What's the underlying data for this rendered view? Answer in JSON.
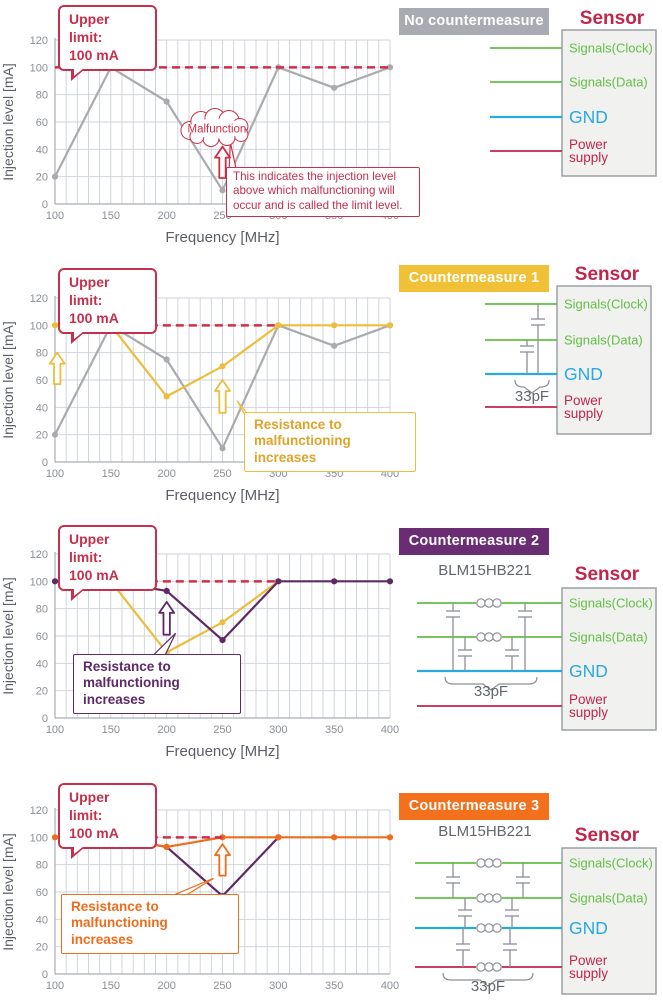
{
  "colors": {
    "red": "#cf2e46",
    "crimson": "#c2254a",
    "gray_line": "#a9abad",
    "yellow": "#ecbe3c",
    "purple": "#5d2a66",
    "orange": "#ee6d1d",
    "green": "#62c046",
    "blue": "#29a9e0",
    "badge_gray": "#a8acb2",
    "badge_yellow": "#f0c137",
    "badge_purple": "#6a2d74",
    "badge_orange": "#f3701d",
    "grid": "#ccd1da",
    "axis_line": "#a9aeb5",
    "axis_text": "#8a8f96",
    "axis_title": "#5a5f66",
    "component": "#8a9096",
    "label_gray": "#60666c",
    "sensor_box_fill": "#f1f1ef",
    "sensor_box_border": "#9aa0a5"
  },
  "upper_limit": [
    "Upper limit:",
    "100 mA"
  ],
  "axes": {
    "x_label": "Frequency  [MHz]",
    "y_label": "Injection level [mA]",
    "x_ticks": [
      100,
      150,
      200,
      250,
      300,
      350,
      400
    ],
    "y_ticks": [
      0,
      20,
      40,
      60,
      80,
      100,
      120
    ],
    "x_minor_step": 10,
    "xlim": [
      100,
      400
    ],
    "ylim": [
      0,
      130
    ]
  },
  "panels": [
    {
      "badge": {
        "label": "No countermeasure",
        "color_key": "badge_gray"
      },
      "note": "This indicates the injection level above which malfunctioning will occur and is called the limit level.",
      "sensor": {
        "title": "Sensor",
        "part_label": null,
        "cap_value": null,
        "beads": [],
        "pins": [
          {
            "label": "Signals(Clock)",
            "color_key": "green"
          },
          {
            "label": "Signals(Data)",
            "color_key": "green"
          },
          {
            "label": "GND",
            "color_key": "blue"
          },
          {
            "label": "Power supply",
            "color_key": "crimson"
          }
        ]
      }
    },
    {
      "badge": {
        "label": "Countermeasure 1",
        "color_key": "badge_yellow"
      },
      "resist_note": "Resistance to malfunctioning increases",
      "sensor": {
        "title": "Sensor",
        "part_label": null,
        "cap_value": "33pF",
        "beads": [],
        "pins": [
          {
            "label": "Signals(Clock)",
            "color_key": "green"
          },
          {
            "label": "Signals(Data)",
            "color_key": "green"
          },
          {
            "label": "GND",
            "color_key": "blue"
          },
          {
            "label": "Power supply",
            "color_key": "crimson"
          }
        ]
      }
    },
    {
      "badge": {
        "label": "Countermeasure 2",
        "color_key": "badge_purple"
      },
      "resist_note": "Resistance to malfunctioning increases",
      "sensor": {
        "title": "Sensor",
        "part_label": "BLM15HB221",
        "cap_value": "33pF",
        "beads": [
          0,
          1
        ],
        "pins": [
          {
            "label": "Signals(Clock)",
            "color_key": "green"
          },
          {
            "label": "Signals(Data)",
            "color_key": "green"
          },
          {
            "label": "GND",
            "color_key": "blue"
          },
          {
            "label": "Power supply",
            "color_key": "crimson"
          }
        ]
      }
    },
    {
      "badge": {
        "label": "Countermeasure 3",
        "color_key": "badge_orange"
      },
      "resist_note": "Resistance to malfunctioning increases",
      "sensor": {
        "title": "Sensor",
        "part_label": "BLM15HB221",
        "cap_value": "33pF",
        "beads": [
          0,
          1,
          2,
          3
        ],
        "pins": [
          {
            "label": "Signals(Clock)",
            "color_key": "green"
          },
          {
            "label": "Signals(Data)",
            "color_key": "green"
          },
          {
            "label": "GND",
            "color_key": "blue"
          },
          {
            "label": "Power supply",
            "color_key": "crimson"
          }
        ]
      }
    }
  ],
  "chart_data": [
    {
      "type": "line",
      "title": "No countermeasure",
      "xlabel": "Frequency  [MHz]",
      "ylabel": "Injection level [mA]",
      "xlim": [
        100,
        400
      ],
      "ylim": [
        0,
        130
      ],
      "grid": true,
      "x_ticks": [
        100,
        150,
        200,
        250,
        300,
        350,
        400
      ],
      "y_ticks": [
        0,
        20,
        40,
        60,
        80,
        100,
        120
      ],
      "series": [
        {
          "name": "No countermeasure",
          "color_key": "gray_line",
          "dots": true,
          "points": [
            [
              100,
              20
            ],
            [
              150,
              100
            ],
            [
              200,
              75
            ],
            [
              250,
              10
            ],
            [
              300,
              100
            ],
            [
              350,
              85
            ],
            [
              400,
              100
            ]
          ]
        }
      ],
      "limit_line": {
        "y": 100,
        "x0": 100,
        "x1": 400,
        "label": "Upper limit: 100 mA",
        "color_key": "red"
      },
      "annotations": {
        "cloud": {
          "label": "Malfunction",
          "x": 245,
          "y": 56
        },
        "arrows": [
          {
            "x": 250,
            "y_from": 19,
            "y_to": 42,
            "color_key": "red"
          }
        ],
        "pointers": [
          {
            "tip": [
              257,
              45
            ],
            "base": [
              [
                256,
                26
              ],
              [
                263,
                23
              ]
            ],
            "color_key": "red"
          }
        ]
      }
    },
    {
      "type": "line",
      "title": "Countermeasure 1",
      "xlabel": "Frequency  [MHz]",
      "ylabel": "Injection level [mA]",
      "xlim": [
        100,
        400
      ],
      "ylim": [
        0,
        130
      ],
      "grid": true,
      "x_ticks": [
        100,
        150,
        200,
        250,
        300,
        350,
        400
      ],
      "y_ticks": [
        0,
        20,
        40,
        60,
        80,
        100,
        120
      ],
      "series": [
        {
          "name": "No countermeasure",
          "color_key": "gray_line",
          "dots": true,
          "points": [
            [
              100,
              20
            ],
            [
              150,
              100
            ],
            [
              200,
              75
            ],
            [
              250,
              10
            ],
            [
              300,
              100
            ],
            [
              350,
              85
            ],
            [
              400,
              100
            ]
          ]
        },
        {
          "name": "Countermeasure 1",
          "color_key": "yellow",
          "dots": true,
          "points": [
            [
              100,
              100
            ],
            [
              150,
              100
            ],
            [
              200,
              48
            ],
            [
              250,
              70
            ],
            [
              300,
              100
            ],
            [
              350,
              100
            ],
            [
              400,
              100
            ]
          ]
        }
      ],
      "limit_line": {
        "y": 100,
        "x0": 150,
        "x1": 300,
        "label": "Upper limit: 100 mA",
        "color_key": "red"
      },
      "annotations": {
        "arrows": [
          {
            "x": 102,
            "y_from": 57,
            "y_to": 80,
            "color_key": "yellow"
          },
          {
            "x": 250,
            "y_from": 36,
            "y_to": 60,
            "color_key": "yellow"
          }
        ],
        "pointers": [
          {
            "tip": [
              263,
              45
            ],
            "base": [
              [
                271,
                33
              ],
              [
                277,
                30
              ]
            ],
            "color_key": "yellow"
          }
        ]
      }
    },
    {
      "type": "line",
      "title": "Countermeasure 2",
      "xlabel": "Frequency  [MHz]",
      "ylabel": "Injection level [mA]",
      "xlim": [
        100,
        400
      ],
      "ylim": [
        0,
        130
      ],
      "grid": true,
      "x_ticks": [
        100,
        150,
        200,
        250,
        300,
        350,
        400
      ],
      "y_ticks": [
        0,
        20,
        40,
        60,
        80,
        100,
        120
      ],
      "series": [
        {
          "name": "Countermeasure 1",
          "color_key": "yellow",
          "dots": true,
          "points": [
            [
              150,
              100
            ],
            [
              200,
              48
            ],
            [
              250,
              70
            ],
            [
              300,
              100
            ]
          ]
        },
        {
          "name": "Countermeasure 2",
          "color_key": "purple",
          "dots": true,
          "points": [
            [
              100,
              100
            ],
            [
              150,
              100
            ],
            [
              200,
              93
            ],
            [
              250,
              57
            ],
            [
              300,
              100
            ],
            [
              350,
              100
            ],
            [
              400,
              100
            ]
          ]
        }
      ],
      "limit_line": {
        "y": 100,
        "x0": 150,
        "x1": 300,
        "label": "Upper limit: 100 mA",
        "color_key": "red"
      },
      "annotations": {
        "arrows": [
          {
            "x": 200,
            "y_from": 61,
            "y_to": 85,
            "color_key": "purple"
          }
        ],
        "pointers": [
          {
            "tip": [
              208,
              62
            ],
            "base": [
              [
                188,
                46
              ],
              [
                198,
                45
              ]
            ],
            "color_key": "purple"
          }
        ]
      }
    },
    {
      "type": "line",
      "title": "Countermeasure 3",
      "xlabel": "",
      "ylabel": "Injection level [mA]",
      "xlim": [
        100,
        400
      ],
      "ylim": [
        0,
        130
      ],
      "grid": true,
      "x_ticks": [
        100,
        150,
        200,
        250,
        300,
        350,
        400
      ],
      "y_ticks": [
        0,
        20,
        40,
        60,
        80,
        100,
        120
      ],
      "series": [
        {
          "name": "Countermeasure 2",
          "color_key": "purple",
          "dots": true,
          "points": [
            [
              150,
              100
            ],
            [
              200,
              93
            ],
            [
              250,
              57
            ],
            [
              300,
              100
            ]
          ]
        },
        {
          "name": "Countermeasure 3",
          "color_key": "orange",
          "dots": true,
          "points": [
            [
              100,
              100
            ],
            [
              150,
              100
            ],
            [
              200,
              93
            ],
            [
              250,
              100
            ],
            [
              300,
              100
            ],
            [
              350,
              100
            ],
            [
              400,
              100
            ]
          ]
        }
      ],
      "limit_line": {
        "y": 100,
        "x0": 150,
        "x1": 250,
        "label": "Upper limit: 100 mA",
        "color_key": "red"
      },
      "annotations": {
        "arrows": [
          {
            "x": 250,
            "y_from": 72,
            "y_to": 95,
            "color_key": "orange"
          }
        ],
        "pointers": [
          {
            "tip": [
              242,
              70
            ],
            "base": [
              [
                204,
                57
              ],
              [
                214,
                56
              ]
            ],
            "color_key": "orange"
          }
        ]
      }
    }
  ]
}
